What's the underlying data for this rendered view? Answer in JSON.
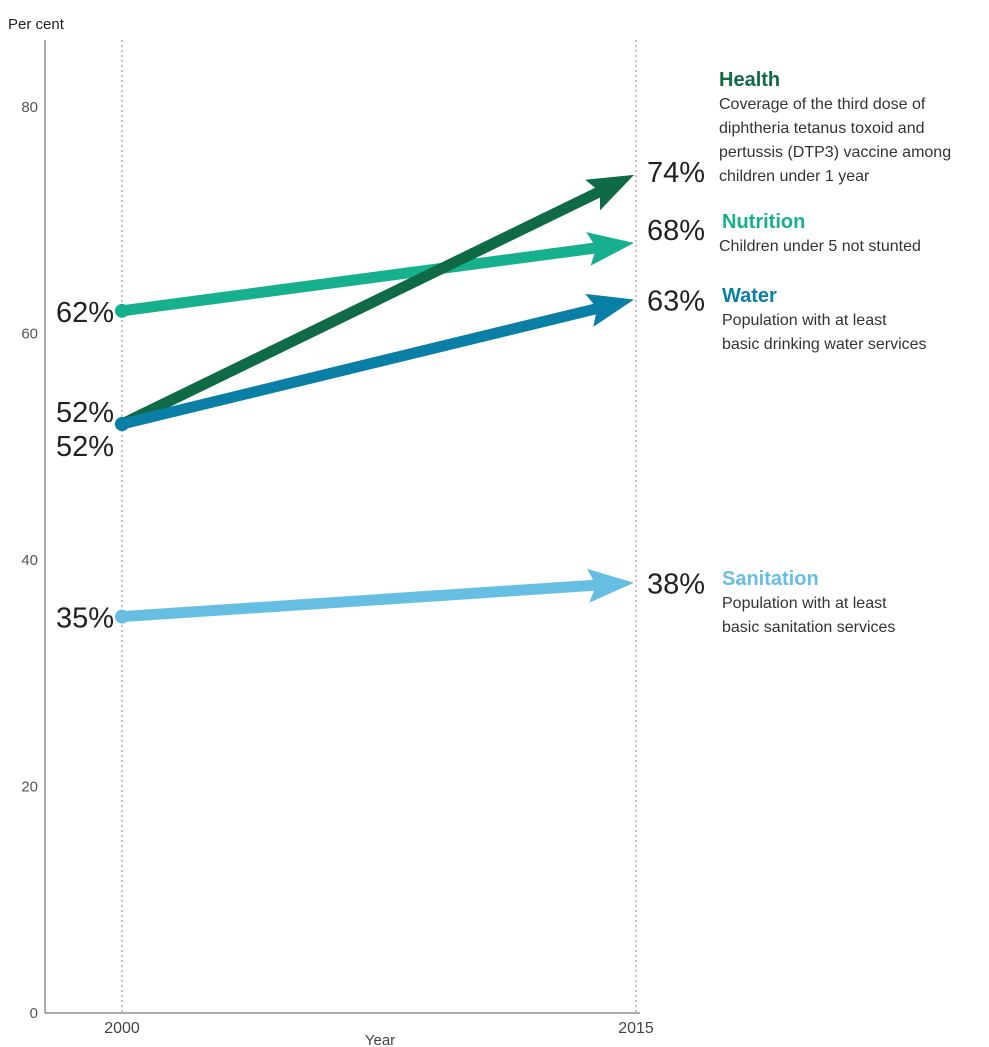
{
  "chart_data": {
    "type": "line",
    "ylabel": "Per cent",
    "xlabel": "Year",
    "x": [
      "2000",
      "2015"
    ],
    "ylim": [
      0,
      85
    ],
    "yticks": [
      "0",
      "20",
      "40",
      "60",
      "80"
    ],
    "grid": "vertical dotted lines at x ticks",
    "series": [
      {
        "name": "Health",
        "description": [
          "Coverage of the third dose of",
          "diphtheria tetanus toxoid and",
          "pertussis (DTP3) vaccine among",
          "children under 1 year"
        ],
        "values": [
          52,
          74
        ],
        "start_label": "52%",
        "end_label": "74%",
        "color": "#0e6b45"
      },
      {
        "name": "Nutrition",
        "description": [
          "Children under 5 not stunted"
        ],
        "values": [
          62,
          68
        ],
        "start_label": "62%",
        "end_label": "68%",
        "color": "#17b08e"
      },
      {
        "name": "Water",
        "description": [
          "Population with at least",
          "basic drinking water services"
        ],
        "values": [
          52,
          63
        ],
        "start_label": "52%",
        "end_label": "63%",
        "color": "#0a7fa6"
      },
      {
        "name": "Sanitation",
        "description": [
          "Population with at least",
          "basic sanitation services"
        ],
        "values": [
          35,
          38
        ],
        "start_label": "35%",
        "end_label": "38%",
        "color": "#66bfe2"
      }
    ]
  }
}
